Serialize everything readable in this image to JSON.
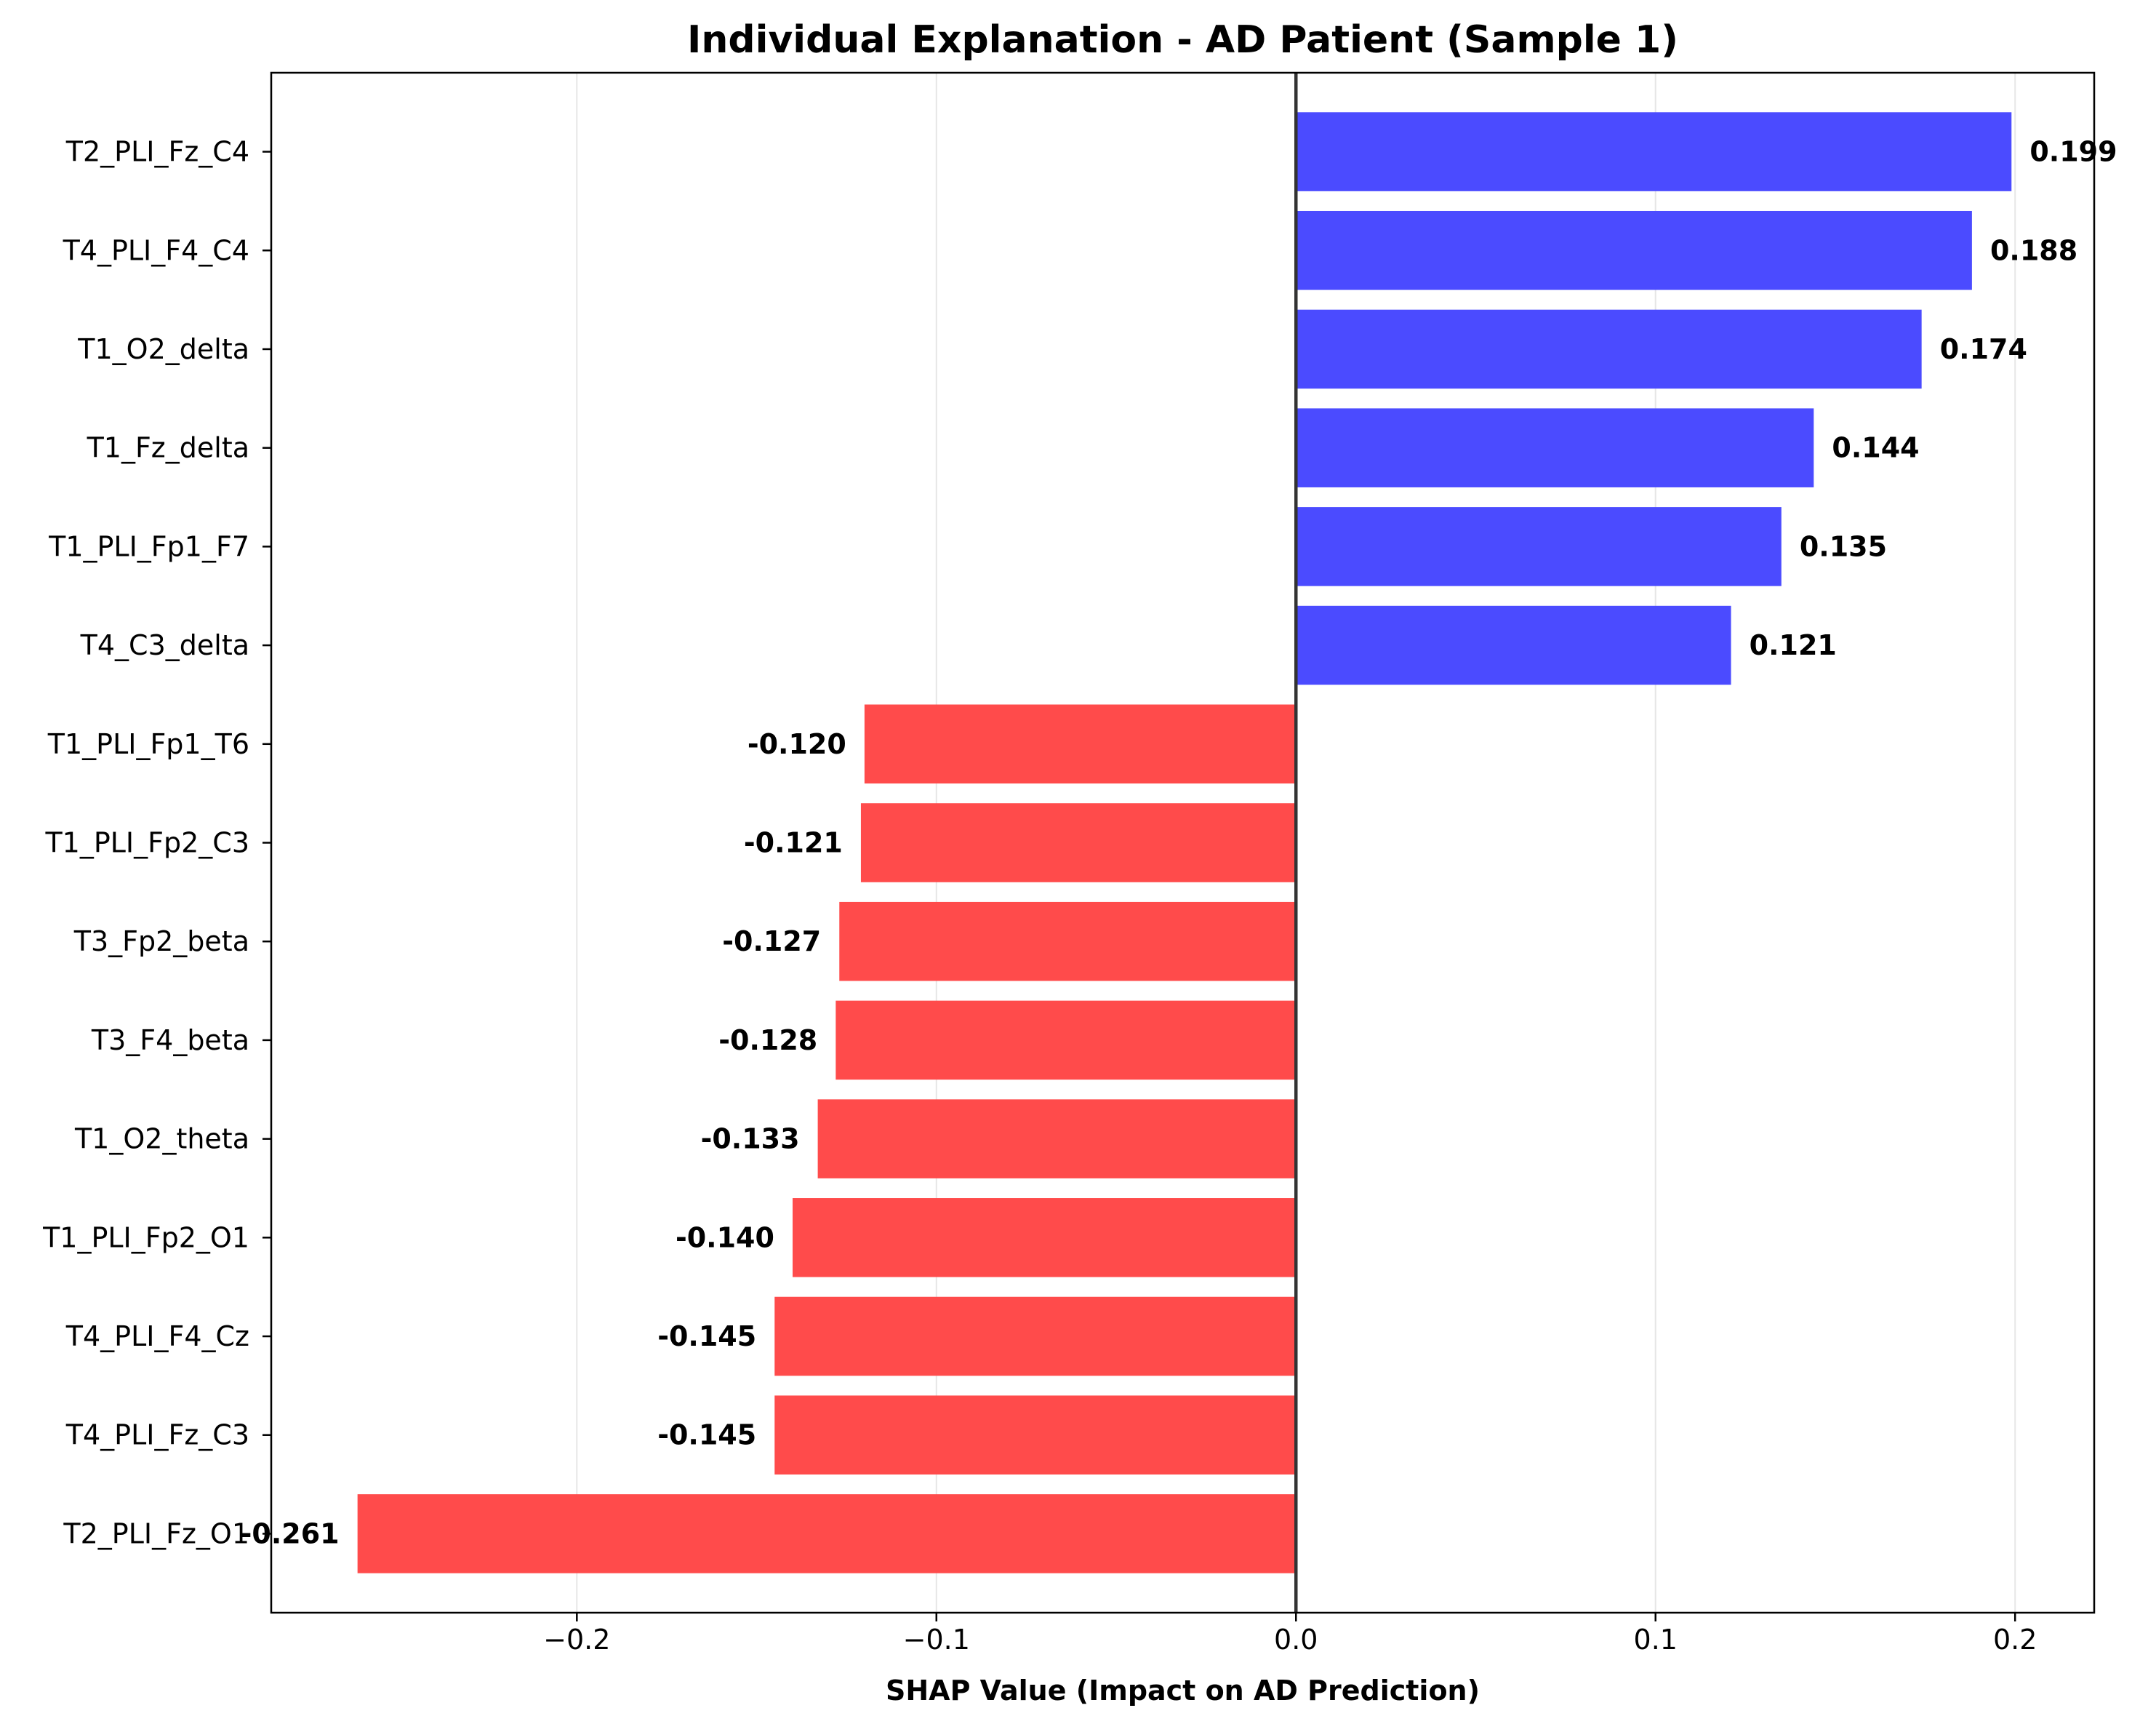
{
  "chart_data": {
    "type": "bar",
    "orientation": "horizontal",
    "title": "Individual Explanation - AD Patient (Sample 1)",
    "xlabel": "SHAP Value (Impact on AD Prediction)",
    "ylabel": "",
    "xlim": [
      -0.285,
      0.222
    ],
    "x_ticks": [
      -0.2,
      -0.1,
      0.0,
      0.1,
      0.2
    ],
    "x_tick_labels": [
      "−0.2",
      "−0.1",
      "0.0",
      "0.1",
      "0.2"
    ],
    "grid": "vertical",
    "categories": [
      "T2_PLI_Fz_C4",
      "T4_PLI_F4_C4",
      "T1_O2_delta",
      "T1_Fz_delta",
      "T1_PLI_Fp1_F7",
      "T4_C3_delta",
      "T1_PLI_Fp1_T6",
      "T1_PLI_Fp2_C3",
      "T3_Fp2_beta",
      "T3_F4_beta",
      "T1_O2_theta",
      "T1_PLI_Fp2_O1",
      "T4_PLI_F4_Cz",
      "T4_PLI_Fz_C3",
      "T2_PLI_Fz_O1"
    ],
    "values": [
      0.199,
      0.188,
      0.174,
      0.144,
      0.135,
      0.121,
      -0.12,
      -0.121,
      -0.127,
      -0.128,
      -0.133,
      -0.14,
      -0.145,
      -0.145,
      -0.261
    ],
    "value_labels": [
      "0.199",
      "0.188",
      "0.174",
      "0.144",
      "0.135",
      "0.121",
      "-0.120",
      "-0.121",
      "-0.127",
      "-0.128",
      "-0.133",
      "-0.140",
      "-0.145",
      "-0.145",
      "-0.261"
    ],
    "colors": {
      "positive": "#4b4bff",
      "negative": "#ff4b4b",
      "zero_line": "#333333",
      "grid": "#e6e6e6"
    }
  }
}
